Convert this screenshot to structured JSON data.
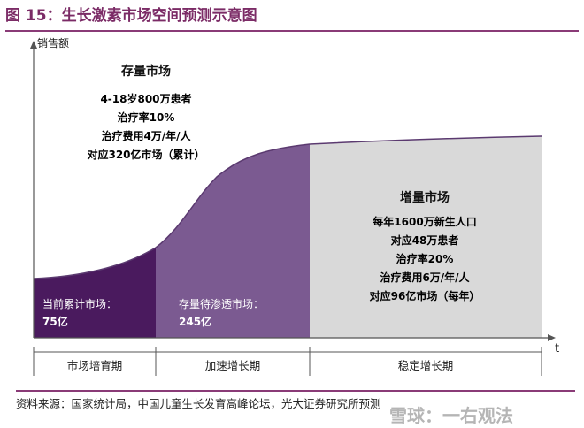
{
  "title": "图 15：生长激素市场空间预测示意图",
  "y_axis_label": "销售额",
  "x_axis_label": "t",
  "stock_market": {
    "heading": "存量市场",
    "lines": [
      "4-18岁800万患者",
      "治疗率10%",
      "治疗费用4万/年/人",
      "对应320亿市场（累计）"
    ]
  },
  "incremental_market": {
    "heading": "增量市场",
    "lines": [
      "每年1600万新生人口",
      "对应48万患者",
      "治疗率20%",
      "治疗费用6万/年/人",
      "对应96亿市场（每年）"
    ]
  },
  "cumulative_market": {
    "label": "当前累计市场：",
    "value": "75亿"
  },
  "pending_market": {
    "label": "存量待渗透市场：",
    "value": "245亿"
  },
  "phases": [
    "市场培育期",
    "加速增长期",
    "稳定增长期"
  ],
  "source": "资料来源：国家统计局，中国儿童生长发育高峰论坛，光大证券研究所预测",
  "watermark": "雪球：一右观法",
  "colors": {
    "cumulative": "#4a1a5e",
    "pending": "#7b5a91",
    "incremental": "#d9d9d9",
    "title": "#7b2b66"
  }
}
